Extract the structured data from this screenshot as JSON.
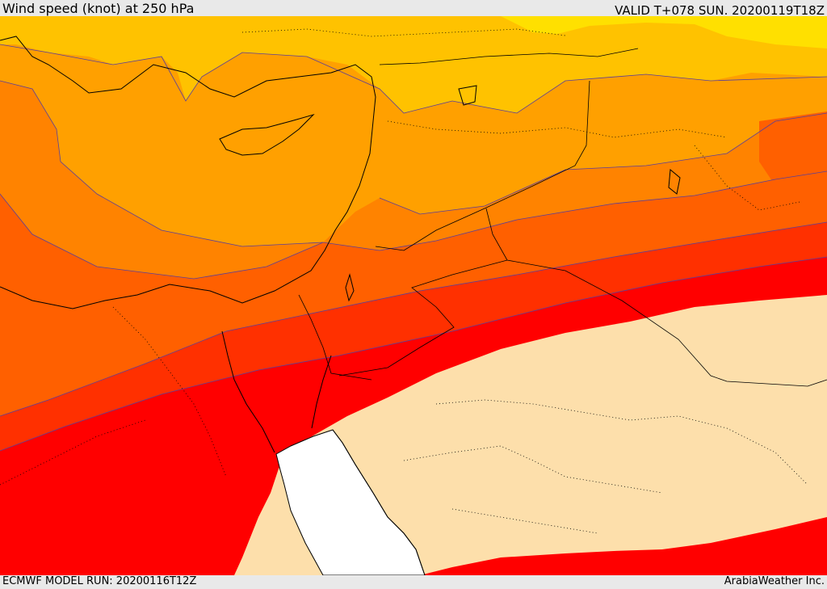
{
  "header": {
    "title": "Wind speed (knot) at 250 hPa",
    "valid": "VALID T+078 SUN. 20200119T18Z"
  },
  "footer": {
    "model_run": "ECMWF MODEL RUN: 20200116T12Z",
    "credit": "ArabiaWeather Inc."
  },
  "colors": {
    "band_yellow": "#ffe000",
    "band_gold": "#ffc200",
    "band_amber": "#ffa000",
    "band_orange": "#ff8300",
    "band_dark_orange": "#ff6000",
    "band_red_orange": "#ff3000",
    "band_red": "#ff0000",
    "calm_area": "#fddfab",
    "missing_area": "#ffffff",
    "coastline": "#000000",
    "contour": "#5a3f9a"
  }
}
